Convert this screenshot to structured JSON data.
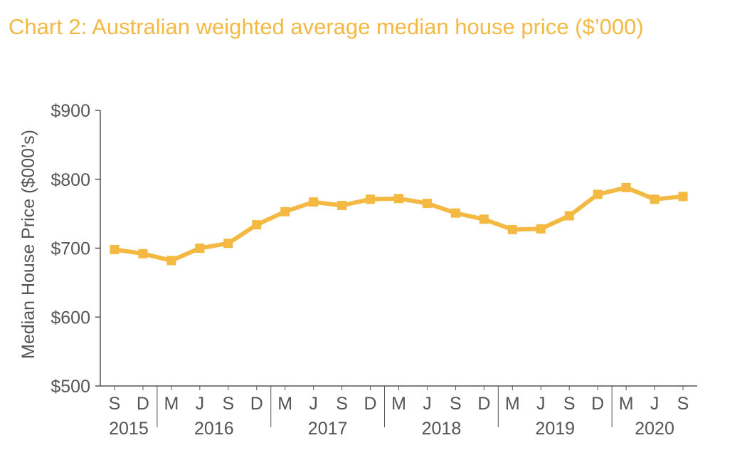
{
  "chart_data": {
    "type": "line",
    "title": "Chart 2: Australian weighted average median house price ($’000)",
    "ylabel": "Median House Price ($000’s)",
    "xlabel": "",
    "ylim": [
      500,
      900
    ],
    "y_ticks": [
      "$900",
      "$800",
      "$700",
      "$600",
      "$500"
    ],
    "y_tick_values": [
      900,
      800,
      700,
      600,
      500
    ],
    "categories": [
      "S",
      "D",
      "M",
      "J",
      "S",
      "D",
      "M",
      "J",
      "S",
      "D",
      "M",
      "J",
      "S",
      "D",
      "M",
      "J",
      "S",
      "D",
      "M",
      "J",
      "S"
    ],
    "year_groups": [
      {
        "label": "2015",
        "count": 2
      },
      {
        "label": "2016",
        "count": 4
      },
      {
        "label": "2017",
        "count": 4
      },
      {
        "label": "2018",
        "count": 4
      },
      {
        "label": "2019",
        "count": 4
      },
      {
        "label": "2020",
        "count": 3
      }
    ],
    "series": [
      {
        "values": [
          698,
          692,
          682,
          700,
          707,
          734,
          753,
          767,
          762,
          771,
          772,
          765,
          751,
          742,
          727,
          728,
          747,
          778,
          788,
          771,
          775
        ]
      }
    ],
    "line_color": "#F4B942",
    "axis_color": "#555555",
    "grid": false,
    "legend": "none"
  }
}
